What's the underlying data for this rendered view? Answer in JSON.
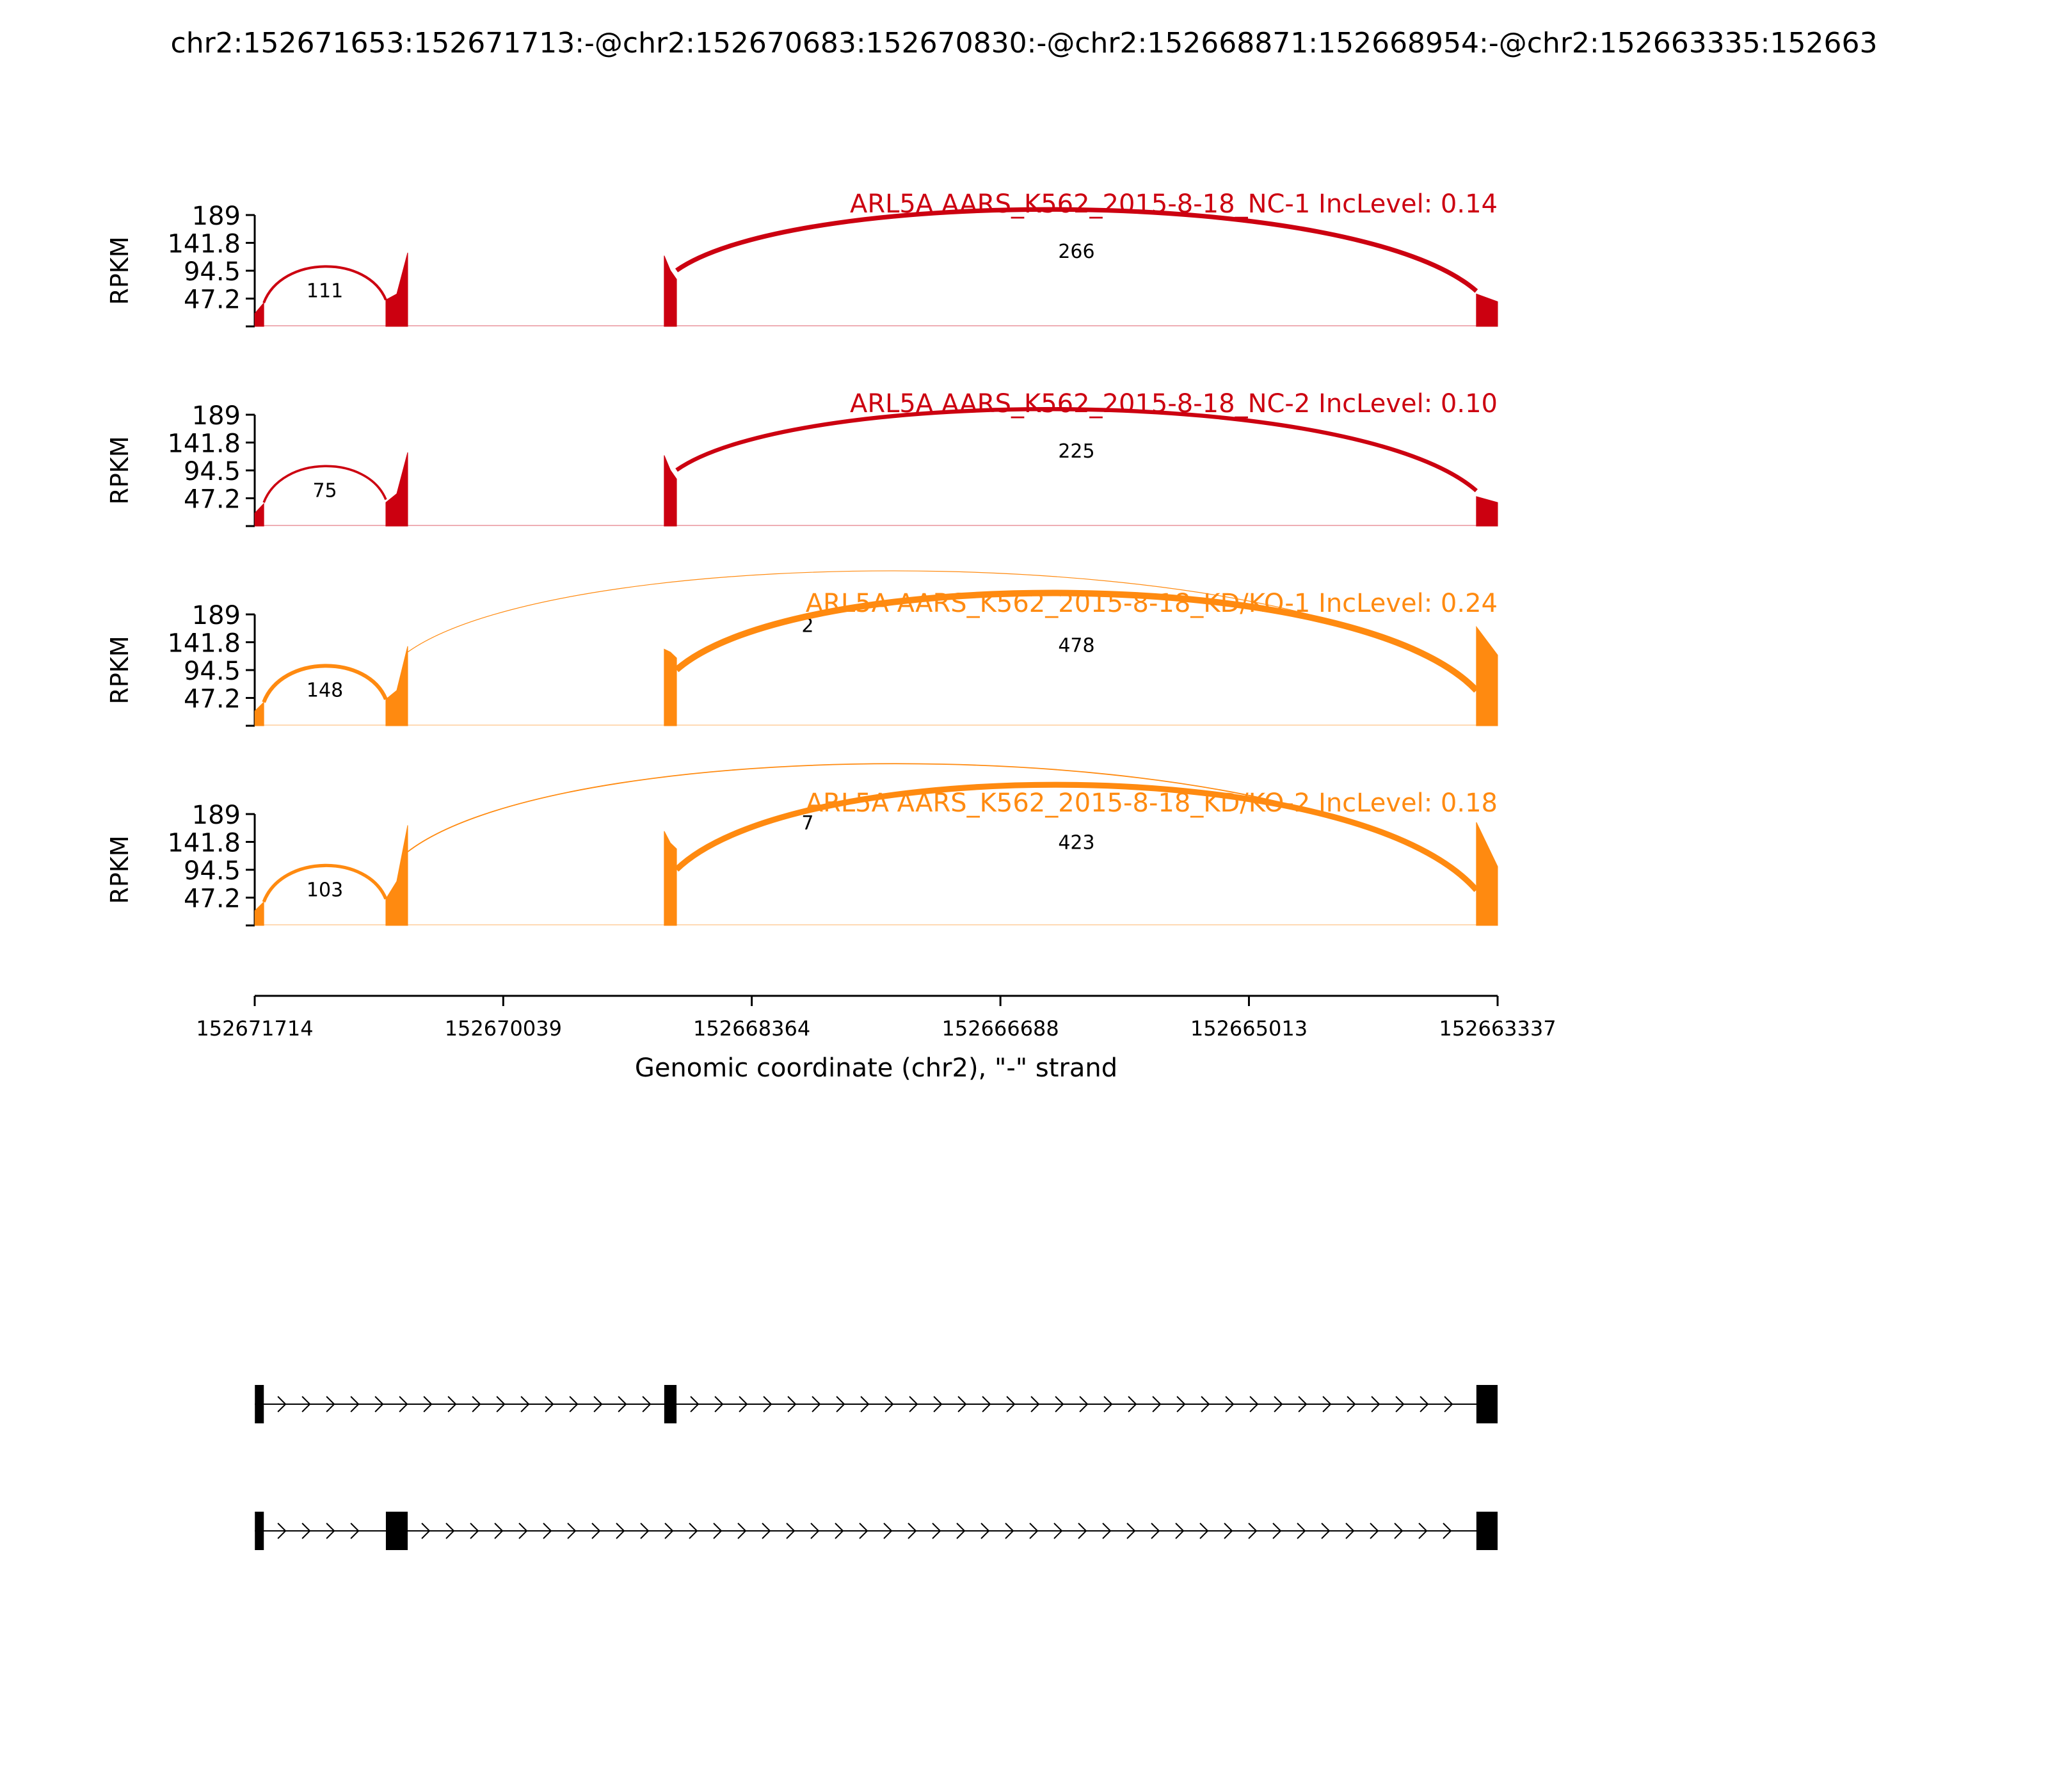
{
  "title": "chr2:152671653:152671713:-@chr2:152670683:152670830:-@chr2:152668871:152668954:-@chr2:152663335:152663",
  "colors": {
    "nc": "#cc0010",
    "kd": "#ff8a10",
    "axis": "#000000"
  },
  "chart_data": {
    "type": "area",
    "xlabel": "Genomic coordinate (chr2), \"-\" strand",
    "x_ticks": [
      "152671714",
      "152670039",
      "152668364",
      "152666688",
      "152665013",
      "152663337"
    ],
    "xlim": [
      152671714,
      152663337
    ],
    "ylabel": "RPKM",
    "y_ticks": [
      "189",
      "141.8",
      "94.5",
      "47.2"
    ],
    "ylim": [
      0,
      189
    ],
    "exons": [
      {
        "start": 152671713,
        "end": 152671653
      },
      {
        "start": 152670830,
        "end": 152670683
      },
      {
        "start": 152668954,
        "end": 152668871
      },
      {
        "start": 152663480,
        "end": 152663337
      }
    ],
    "tracks": [
      {
        "label": "ARL5A AARS_K562_2015-8-18_NC-1 IncLevel: 0.14",
        "color_key": "nc",
        "exon_coverage": [
          [
            22,
            40
          ],
          [
            45,
            55,
            125
          ],
          [
            120,
            95,
            80
          ],
          [
            55,
            42
          ]
        ],
        "junctions": [
          {
            "from": 152671653,
            "to": 152670830,
            "count": "111",
            "weight": 2.0
          },
          {
            "from": 152668871,
            "to": 152663480,
            "count": "266",
            "weight": 3.6
          }
        ]
      },
      {
        "label": "ARL5A AARS_K562_2015-8-18_NC-2 IncLevel: 0.10",
        "color_key": "nc",
        "exon_coverage": [
          [
            22,
            38
          ],
          [
            40,
            55,
            125
          ],
          [
            120,
            95,
            80
          ],
          [
            50,
            40
          ]
        ],
        "junctions": [
          {
            "from": 152671653,
            "to": 152670830,
            "count": "75",
            "weight": 1.8
          },
          {
            "from": 152668871,
            "to": 152663480,
            "count": "225",
            "weight": 3.2
          }
        ]
      },
      {
        "label": "ARL5A AARS_K562_2015-8-18_KD/KO-1 IncLevel: 0.24",
        "color_key": "kd",
        "exon_coverage": [
          [
            25,
            40
          ],
          [
            45,
            60,
            135
          ],
          [
            130,
            125,
            115
          ],
          [
            168,
            120
          ]
        ],
        "junctions": [
          {
            "from": 152671653,
            "to": 152670830,
            "count": "148",
            "weight": 3.0
          },
          {
            "from": 152670683,
            "to": 152663480,
            "count": "2",
            "weight": 0.6
          },
          {
            "from": 152668871,
            "to": 152663480,
            "count": "478",
            "weight": 5.0
          }
        ]
      },
      {
        "label": "ARL5A AARS_K562_2015-8-18_KD/KO-2 IncLevel: 0.18",
        "color_key": "kd",
        "exon_coverage": [
          [
            25,
            40
          ],
          [
            45,
            75,
            170
          ],
          [
            160,
            140,
            130
          ],
          [
            175,
            100
          ]
        ],
        "junctions": [
          {
            "from": 152671653,
            "to": 152670830,
            "count": "103",
            "weight": 2.6
          },
          {
            "from": 152670683,
            "to": 152663480,
            "count": "7",
            "weight": 0.9
          },
          {
            "from": 152668871,
            "to": 152663480,
            "count": "423",
            "weight": 4.6
          }
        ]
      }
    ],
    "isoforms": [
      {
        "exons": [
          0,
          2,
          3
        ]
      },
      {
        "exons": [
          0,
          1,
          3
        ]
      }
    ]
  }
}
